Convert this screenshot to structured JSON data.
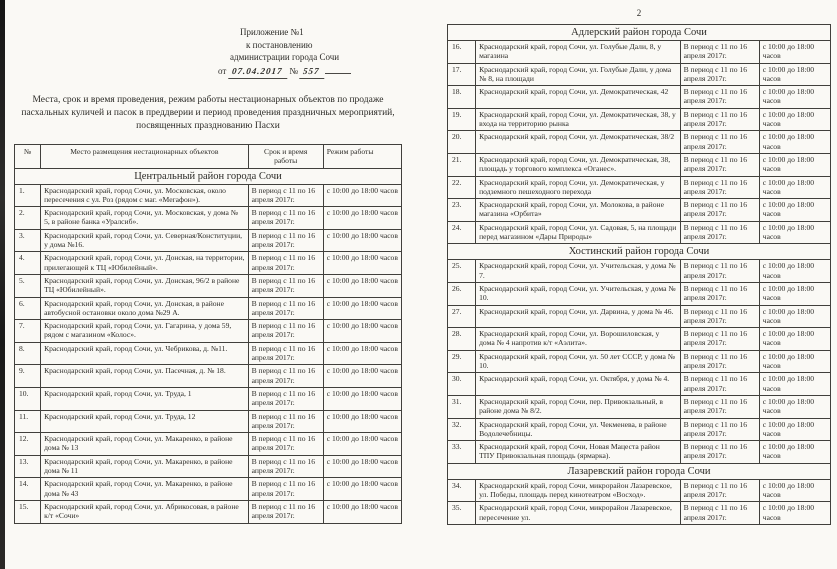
{
  "document": {
    "page2_number": "2",
    "annex": {
      "line1": "Приложение №1",
      "line2": "к постановлению",
      "line3": "администрации города Сочи",
      "line4_prefix": "от",
      "date_handwritten": "07.04.2017",
      "number_sign": "№",
      "number_handwritten": "557"
    },
    "intro": "Места, срок и время проведения, режим работы нестационарных объектов по продаже пасхальных куличей и пасок в преддверии и период проведения праздничных мероприятий, посвященных празднованию Пасхи"
  },
  "table": {
    "headers": [
      "№",
      "Место размещения нестационарных объектов",
      "Срок и время работы",
      "Режим работы"
    ],
    "defaults": {
      "period": "В период с 11 по 16 апреля 2017г.",
      "hours": "с 10:00 до 18:00 часов"
    },
    "page1": [
      {
        "section": "Центральный район города Сочи"
      },
      {
        "num": "1.",
        "place": "Краснодарский край, город Сочи, ул. Московская, около пересечения с ул. Роз (рядом с маг. «Мегафон»)."
      },
      {
        "num": "2.",
        "place": "Краснодарский край, город Сочи, ул. Московская, у дома № 5, в районе банка «Уралсиб»."
      },
      {
        "num": "3.",
        "place": "Краснодарский край, город Сочи, ул. Северная/Конституции, у дома №16."
      },
      {
        "num": "4.",
        "place": "Краснодарский край, город Сочи, ул. Донская, на территории, прилегающей к ТЦ «Юбилейный»."
      },
      {
        "num": "5.",
        "place": "Краснодарский край, город Сочи, ул. Донская, 96/2 в районе ТЦ «Юбилейный»."
      },
      {
        "num": "6.",
        "place": "Краснодарский край, город Сочи, ул. Донская, в районе автобусной остановки около дома №29 А."
      },
      {
        "num": "7.",
        "place": "Краснодарский край, город Сочи, ул. Гагарина, у дома 59, рядом с магазином «Колос»."
      },
      {
        "num": "8.",
        "place": "Краснодарский край, город Сочи, ул. Чебрикова, д. №11."
      },
      {
        "num": "9.",
        "place": "Краснодарский край, город Сочи, ул. Пасечная, д. № 18."
      },
      {
        "num": "10.",
        "place": "Краснодарский край, город Сочи, ул. Труда, 1"
      },
      {
        "num": "11.",
        "place": "Краснодарский край, город Сочи, ул. Труда, 12"
      },
      {
        "num": "12.",
        "place": "Краснодарский край, город Сочи, ул. Макаренко, в районе дома № 13"
      },
      {
        "num": "13.",
        "place": "Краснодарский край, город Сочи, ул. Макаренко, в районе дома № 11"
      },
      {
        "num": "14.",
        "place": "Краснодарский край, город Сочи, ул. Макаренко, в районе дома № 43"
      },
      {
        "num": "15.",
        "place": "Краснодарский край, город Сочи, ул. Абрикосовая, в районе к/т «Сочи»"
      }
    ],
    "page2": [
      {
        "section": "Адлерский район города Сочи"
      },
      {
        "num": "16.",
        "place": "Краснодарский край, город Сочи, ул. Голубые Дали, 8, у магазина"
      },
      {
        "num": "17.",
        "place": "Краснодарский край, город Сочи, ул. Голубые Дали, у дома № 8, на площади"
      },
      {
        "num": "18.",
        "place": "Краснодарский край, город Сочи, ул. Демократическая, 42"
      },
      {
        "num": "19.",
        "place": "Краснодарский край, город Сочи, ул. Демократическая, 38, у входа на территорию рынка"
      },
      {
        "num": "20.",
        "place": "Краснодарский край, город Сочи, ул. Демократическая, 38/2"
      },
      {
        "num": "21.",
        "place": "Краснодарский край, город Сочи, ул. Демократическая, 38, площадь у торгового комплекса «Оганес»."
      },
      {
        "num": "22.",
        "place": "Краснодарский край, город Сочи, ул. Демократическая, у подземного пешеходного перехода"
      },
      {
        "num": "23.",
        "place": "Краснодарский край, город Сочи, ул. Молокова, в районе магазина «Орбита»"
      },
      {
        "num": "24.",
        "place": "Краснодарский край, город Сочи, ул. Садовая, 5, на площади перед магазином «Дары Природы»"
      },
      {
        "section": "Хостинский район города Сочи"
      },
      {
        "num": "25.",
        "place": "Краснодарский край, город Сочи, ул. Учительская, у дома № 7."
      },
      {
        "num": "26.",
        "place": "Краснодарский край, город Сочи, ул. Учительская, у дома № 10."
      },
      {
        "num": "27.",
        "place": "Краснодарский край, город Сочи, ул. Дарвина, у дома № 46."
      },
      {
        "num": "28.",
        "place": "Краснодарский край, город Сочи, ул. Ворошиловская, у дома № 4 напротив к/т «Аэлита»."
      },
      {
        "num": "29.",
        "place": "Краснодарский край, город Сочи, ул. 50 лет СССР, у дома № 10."
      },
      {
        "num": "30.",
        "place": "Краснодарский край, город Сочи, ул. Октября, у дома № 4."
      },
      {
        "num": "31.",
        "place": "Краснодарский край, город Сочи, пер. Привокзальный, в районе дома № 8/2."
      },
      {
        "num": "32.",
        "place": "Краснодарский край, город Сочи, ул. Чекменева, в районе Водолечебницы."
      },
      {
        "num": "33.",
        "place": "Краснодарский край, город Сочи, Новая Мацеста район ТПУ Привокзальная площадь (ярмарка)."
      },
      {
        "section": "Лазаревский район города Сочи"
      },
      {
        "num": "34.",
        "place": "Краснодарский край, город Сочи, микрорайон Лазаревское, ул. Победы, площадь перед кинотеатром «Восход»."
      },
      {
        "num": "35.",
        "place": "Краснодарский край, город Сочи, микрорайон Лазаревское, пересечение ул."
      }
    ]
  }
}
